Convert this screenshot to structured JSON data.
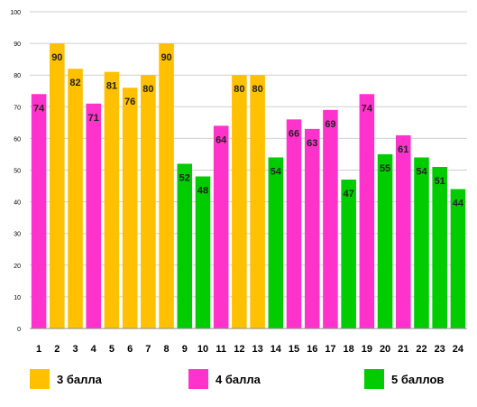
{
  "chart_data": {
    "type": "bar",
    "categories": [
      "1",
      "2",
      "3",
      "4",
      "5",
      "6",
      "7",
      "8",
      "9",
      "10",
      "11",
      "12",
      "13",
      "14",
      "15",
      "16",
      "17",
      "18",
      "19",
      "20",
      "21",
      "22",
      "23",
      "24"
    ],
    "values": [
      74,
      90,
      82,
      71,
      81,
      76,
      80,
      90,
      52,
      48,
      64,
      80,
      80,
      54,
      66,
      63,
      69,
      47,
      74,
      55,
      61,
      54,
      51,
      44
    ],
    "groups": [
      "4 балла",
      "3 балла",
      "3 балла",
      "4 балла",
      "3 балла",
      "3 балла",
      "3 балла",
      "3 балла",
      "5 баллов",
      "5 баллов",
      "4 балла",
      "3 балла",
      "3 балла",
      "5 баллов",
      "4 балла",
      "4 балла",
      "4 балла",
      "5 баллов",
      "4 балла",
      "5 баллов",
      "4 балла",
      "5 баллов",
      "5 баллов",
      "5 баллов"
    ],
    "ylim": [
      0,
      100
    ],
    "yticks": [
      "0",
      "10",
      "20",
      "30",
      "40",
      "50",
      "60",
      "70",
      "80",
      "90",
      "100"
    ],
    "grid": true,
    "legend_position": "bottom",
    "legend": [
      {
        "name": "3 балла",
        "color": "#FFC000"
      },
      {
        "name": "4 балла",
        "color": "#FF33CC"
      },
      {
        "name": "5 баллов",
        "color": "#00CC00"
      }
    ]
  }
}
